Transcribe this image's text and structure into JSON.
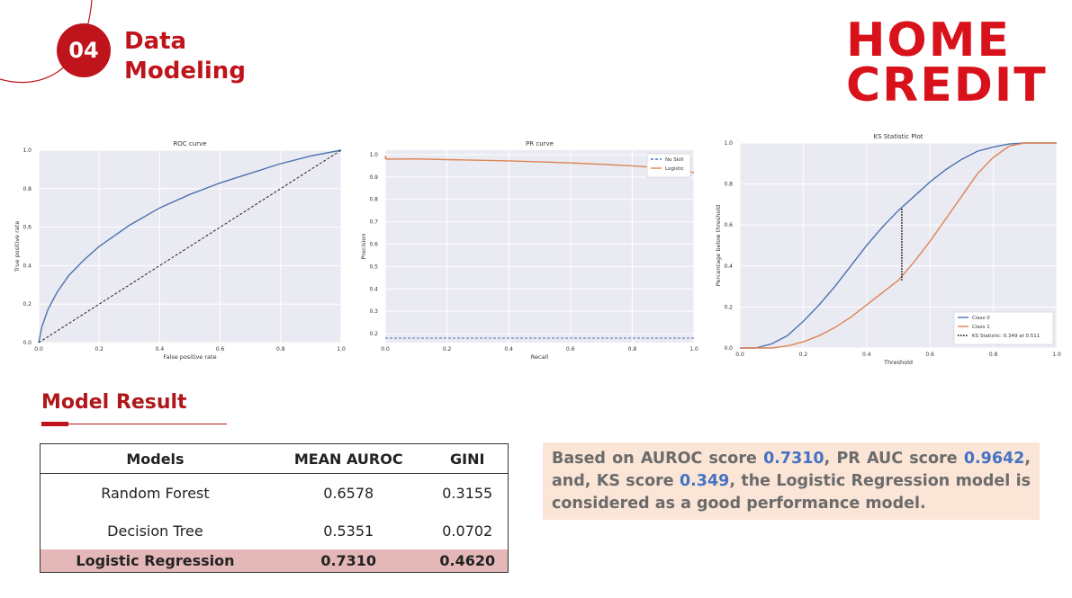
{
  "header": {
    "section_number": "04",
    "title_line1": "Data",
    "title_line2": "Modeling",
    "logo_line1": "HOME",
    "logo_line2": "CREDIT"
  },
  "colors": {
    "brand_red": "#c0141c",
    "series_blue": "#4c72b0",
    "series_orange": "#dd8452",
    "highlight_row": "#e4b8b8",
    "summary_bg": "#fbe5d6",
    "score_blue": "#4472c4"
  },
  "chart_data": [
    {
      "type": "line",
      "title": "ROC curve",
      "xlabel": "False positive rate",
      "ylabel": "True positive rate",
      "xlim": [
        0,
        1
      ],
      "ylim": [
        0,
        1
      ],
      "xticks": [
        "0.0",
        "0.2",
        "0.4",
        "0.6",
        "0.8",
        "1.0"
      ],
      "yticks": [
        "0.0",
        "0.2",
        "0.4",
        "0.6",
        "0.8",
        "1.0"
      ],
      "grid": true,
      "series": [
        {
          "style": "solid",
          "color": "#4c72b0",
          "x": [
            0,
            0.01,
            0.03,
            0.06,
            0.1,
            0.15,
            0.2,
            0.3,
            0.4,
            0.5,
            0.6,
            0.7,
            0.8,
            0.9,
            1.0
          ],
          "y": [
            0,
            0.08,
            0.17,
            0.26,
            0.35,
            0.43,
            0.5,
            0.61,
            0.7,
            0.77,
            0.83,
            0.88,
            0.93,
            0.97,
            1.0
          ]
        },
        {
          "style": "dashed",
          "color": "#222222",
          "x": [
            0,
            1
          ],
          "y": [
            0,
            1
          ]
        }
      ]
    },
    {
      "type": "line",
      "title": "PR curve",
      "xlabel": "Recall",
      "ylabel": "Precision",
      "xlim": [
        0,
        1
      ],
      "ylim": [
        0.16,
        1.02
      ],
      "xticks": [
        "0.0",
        "0.2",
        "0.4",
        "0.6",
        "0.8",
        "1.0"
      ],
      "yticks": [
        "0.2",
        "0.3",
        "0.4",
        "0.5",
        "0.6",
        "0.7",
        "0.8",
        "0.9",
        "1.0"
      ],
      "grid": true,
      "legend": "top-right",
      "series": [
        {
          "name": "No Skill",
          "style": "dashed",
          "color": "#4c72b0",
          "x": [
            0,
            1
          ],
          "y": [
            0.18,
            0.18
          ]
        },
        {
          "name": "Logistic",
          "style": "solid",
          "color": "#dd8452",
          "x": [
            0,
            0.001,
            0.005,
            0.1,
            0.2,
            0.3,
            0.4,
            0.5,
            0.6,
            0.7,
            0.8,
            0.9,
            0.95,
            1.0
          ],
          "y": [
            0.98,
            0.99,
            0.98,
            0.981,
            0.978,
            0.975,
            0.972,
            0.968,
            0.963,
            0.957,
            0.95,
            0.94,
            0.933,
            0.92
          ]
        }
      ]
    },
    {
      "type": "line",
      "title": "KS Statistic Plot",
      "xlabel": "Threshold",
      "ylabel": "Percentage below threshold",
      "xlim": [
        0,
        1
      ],
      "ylim": [
        0,
        1
      ],
      "xticks": [
        "0.0",
        "0.2",
        "0.4",
        "0.6",
        "0.8",
        "1.0"
      ],
      "yticks": [
        "0.0",
        "0.2",
        "0.4",
        "0.6",
        "0.8",
        "1.0"
      ],
      "grid": true,
      "legend": "bottom-right",
      "series": [
        {
          "name": "Class 0",
          "style": "solid",
          "color": "#4c72b0",
          "x": [
            0,
            0.05,
            0.1,
            0.15,
            0.2,
            0.25,
            0.3,
            0.35,
            0.4,
            0.45,
            0.5,
            0.55,
            0.6,
            0.65,
            0.7,
            0.75,
            0.8,
            0.85,
            0.9,
            1.0
          ],
          "y": [
            0,
            0.0,
            0.02,
            0.06,
            0.13,
            0.21,
            0.3,
            0.4,
            0.5,
            0.59,
            0.67,
            0.74,
            0.81,
            0.87,
            0.92,
            0.96,
            0.98,
            0.995,
            1.0,
            1.0
          ]
        },
        {
          "name": "Class 1",
          "style": "solid",
          "color": "#dd8452",
          "x": [
            0,
            0.05,
            0.1,
            0.15,
            0.2,
            0.25,
            0.3,
            0.35,
            0.4,
            0.45,
            0.5,
            0.55,
            0.6,
            0.65,
            0.7,
            0.75,
            0.8,
            0.85,
            0.9,
            1.0
          ],
          "y": [
            0,
            0.0,
            0.0,
            0.01,
            0.03,
            0.06,
            0.1,
            0.15,
            0.21,
            0.27,
            0.33,
            0.42,
            0.52,
            0.63,
            0.74,
            0.85,
            0.93,
            0.985,
            1.0,
            1.0
          ]
        },
        {
          "name": "KS Statistic: 0.349 at 0.511",
          "style": "dotted",
          "color": "#000000",
          "x": [
            0.511,
            0.511
          ],
          "y": [
            0.33,
            0.68
          ]
        }
      ]
    }
  ],
  "model_result": {
    "heading": "Model Result",
    "columns": [
      "Models",
      "MEAN AUROC",
      "GINI"
    ],
    "rows": [
      {
        "model": "Random Forest",
        "auroc": "0.6578",
        "gini": "0.3155"
      },
      {
        "model": "Decision Tree",
        "auroc": "0.5351",
        "gini": "0.0702"
      },
      {
        "model": "Logistic Regression",
        "auroc": "0.7310",
        "gini": "0.4620"
      }
    ]
  },
  "summary": {
    "text1": "Based on AUROC score ",
    "auroc": "0.7310",
    "text2": ", PR AUC score ",
    "prauc": "0.9642",
    "text3": ", and, KS score ",
    "ks": "0.349",
    "text4": ", the Logistic Regression model is considered as a good performance model."
  }
}
